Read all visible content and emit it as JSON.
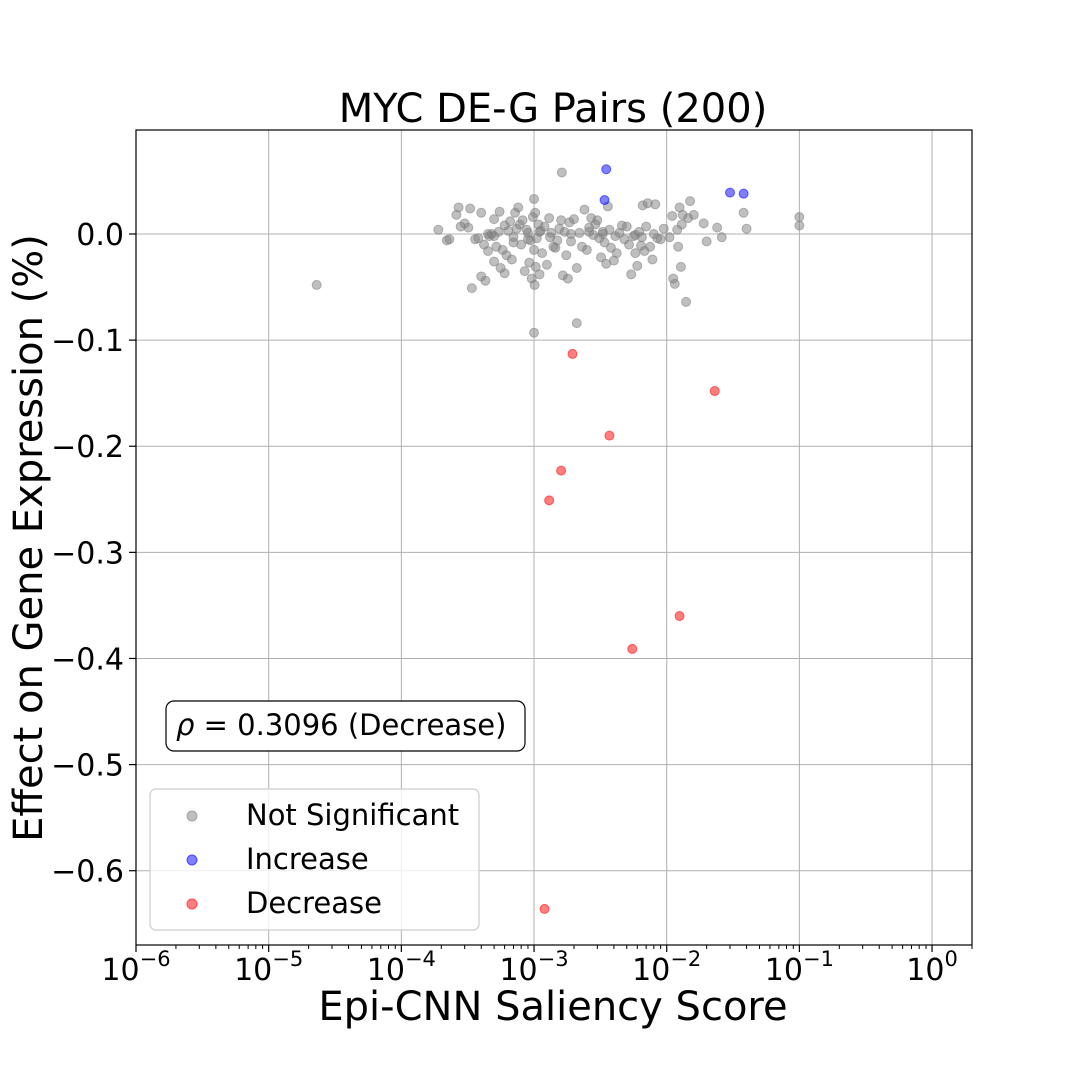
{
  "chart_data": {
    "type": "scatter",
    "title": "MYC DE-G Pairs (200)",
    "xlabel": "Epi-CNN Saliency Score",
    "ylabel": "Effect on Gene Expression (%)",
    "xscale": "log",
    "xlim": [
      1e-06,
      2
    ],
    "ylim": [
      -0.67,
      0.098
    ],
    "x_tick_values": [
      1e-06,
      1e-05,
      0.0001,
      0.001,
      0.01,
      0.1,
      1
    ],
    "x_tick_labels": [
      {
        "base": "10",
        "exp": "−6"
      },
      {
        "base": "10",
        "exp": "−5"
      },
      {
        "base": "10",
        "exp": "−4"
      },
      {
        "base": "10",
        "exp": "−3"
      },
      {
        "base": "10",
        "exp": "−2"
      },
      {
        "base": "10",
        "exp": "−1"
      },
      {
        "base": "10",
        "exp": "0"
      }
    ],
    "y_ticks": [
      {
        "value": 0.0,
        "label": "0.0"
      },
      {
        "value": -0.1,
        "label": "−0.1"
      },
      {
        "value": -0.2,
        "label": "−0.2"
      },
      {
        "value": -0.3,
        "label": "−0.3"
      },
      {
        "value": -0.4,
        "label": "−0.4"
      },
      {
        "value": -0.5,
        "label": "−0.5"
      },
      {
        "value": -0.6,
        "label": "−0.6"
      }
    ],
    "grid": true,
    "legend_position": "lower-left",
    "annotation": {
      "symbol": "ρ",
      "text": " = 0.3096 (Decrease)"
    },
    "series": [
      {
        "name": "Not Significant",
        "color": "#808080",
        "points": [
          [
            2.3e-05,
            -0.048
          ],
          [
            0.00019,
            0.004
          ],
          [
            0.00022,
            -0.006
          ],
          [
            0.00023,
            -0.005
          ],
          [
            0.00026,
            0.018
          ],
          [
            0.00027,
            0.025
          ],
          [
            0.00028,
            0.007
          ],
          [
            0.0003,
            0.01
          ],
          [
            0.00032,
            0.006
          ],
          [
            0.00033,
            0.024
          ],
          [
            0.00034,
            -0.051
          ],
          [
            0.00036,
            -0.005
          ],
          [
            0.00038,
            -0.004
          ],
          [
            0.0004,
            0.02
          ],
          [
            0.0004,
            -0.04
          ],
          [
            0.00042,
            -0.01
          ],
          [
            0.00043,
            -0.044
          ],
          [
            0.00045,
            -0.016
          ],
          [
            0.00046,
            -0.002
          ],
          [
            0.00048,
            0.0
          ],
          [
            0.0005,
            0.014
          ],
          [
            0.0005,
            -0.026
          ],
          [
            0.00052,
            -0.012
          ],
          [
            0.00054,
            0.002
          ],
          [
            0.00055,
            0.021
          ],
          [
            0.00056,
            -0.032
          ],
          [
            0.00058,
            -0.015
          ],
          [
            0.0006,
            -0.037
          ],
          [
            0.0006,
            0.008
          ],
          [
            0.00062,
            -0.02
          ],
          [
            0.00064,
            0.003
          ],
          [
            0.00066,
            0.012
          ],
          [
            0.00068,
            -0.024
          ],
          [
            0.0007,
            -0.008
          ],
          [
            0.00072,
            0.02
          ],
          [
            0.00074,
            0.005
          ],
          [
            0.00076,
            0.025
          ],
          [
            0.00078,
            0.009
          ],
          [
            0.0008,
            -0.01
          ],
          [
            0.00082,
            0.013
          ],
          [
            0.00085,
            -0.035
          ],
          [
            0.00088,
            0.004
          ],
          [
            0.0009,
            0.001
          ],
          [
            0.00092,
            -0.027
          ],
          [
            0.00094,
            -0.006
          ],
          [
            0.00096,
            -0.042
          ],
          [
            0.00098,
            0.016
          ],
          [
            0.001,
            -0.015
          ],
          [
            0.001,
            0.033
          ],
          [
            0.00101,
            -0.048
          ],
          [
            0.00102,
            0.02
          ],
          [
            0.00103,
            -0.031
          ],
          [
            0.00105,
            -0.004
          ],
          [
            0.00108,
            0.009
          ],
          [
            0.0011,
            -0.038
          ],
          [
            0.00112,
            0.003
          ],
          [
            0.00115,
            -0.018
          ],
          [
            0.0012,
            0.007
          ],
          [
            0.00125,
            -0.029
          ],
          [
            0.0013,
            0.015
          ],
          [
            0.00132,
            -0.003
          ],
          [
            0.00135,
            0.001
          ],
          [
            0.0014,
            -0.012
          ],
          [
            0.00145,
            -0.013
          ],
          [
            0.0015,
            -0.006
          ],
          [
            0.00155,
            0.005
          ],
          [
            0.0016,
            0.013
          ],
          [
            0.00165,
            -0.039
          ],
          [
            0.0017,
            0.002
          ],
          [
            0.00175,
            -0.02
          ],
          [
            0.0018,
            -0.042
          ],
          [
            0.00185,
            0.011
          ],
          [
            0.0019,
            -0.007
          ],
          [
            0.002,
            0.014
          ],
          [
            0.0021,
            -0.032
          ],
          [
            0.0022,
            0.001
          ],
          [
            0.0023,
            -0.012
          ],
          [
            0.0024,
            0.023
          ],
          [
            0.0025,
            -0.015
          ],
          [
            0.0026,
            0.006
          ],
          [
            0.0027,
            0.015
          ],
          [
            0.0028,
            -0.001
          ],
          [
            0.0029,
            0.009
          ],
          [
            0.003,
            0.013
          ],
          [
            0.0031,
            -0.004
          ],
          [
            0.0032,
            -0.022
          ],
          [
            0.0033,
            0.002
          ],
          [
            0.0034,
            -0.008
          ],
          [
            0.0035,
            -0.028
          ],
          [
            0.0036,
            0.026
          ],
          [
            0.0037,
            0.004
          ],
          [
            0.0038,
            -0.013
          ],
          [
            0.004,
            -0.025
          ],
          [
            0.0042,
            -0.018
          ],
          [
            0.0044,
            0.001
          ],
          [
            0.0046,
            0.008
          ],
          [
            0.0048,
            -0.005
          ],
          [
            0.005,
            0.007
          ],
          [
            0.0052,
            -0.01
          ],
          [
            0.0054,
            -0.038
          ],
          [
            0.0056,
            -0.002
          ],
          [
            0.0058,
            -0.018
          ],
          [
            0.006,
            -0.03
          ],
          [
            0.0062,
            0.002
          ],
          [
            0.0064,
            -0.011
          ],
          [
            0.0066,
            0.027
          ],
          [
            0.0068,
            -0.016
          ],
          [
            0.007,
            0.007
          ],
          [
            0.0072,
            0.029
          ],
          [
            0.0075,
            -0.012
          ],
          [
            0.0078,
            -0.024
          ],
          [
            0.008,
            0.0
          ],
          [
            0.0082,
            0.028
          ],
          [
            0.0085,
            -0.004
          ],
          [
            0.009,
            -0.005
          ],
          [
            0.0095,
            0.005
          ],
          [
            0.0105,
            -0.003
          ],
          [
            0.011,
            0.017
          ],
          [
            0.0112,
            -0.042
          ],
          [
            0.0115,
            -0.047
          ],
          [
            0.012,
            0.004
          ],
          [
            0.0122,
            -0.012
          ],
          [
            0.0125,
            0.025
          ],
          [
            0.0128,
            -0.031
          ],
          [
            0.013,
            0.009
          ],
          [
            0.0132,
            0.018
          ],
          [
            0.014,
            -0.064
          ],
          [
            0.0145,
            0.015
          ],
          [
            0.015,
            0.031
          ],
          [
            0.016,
            0.018
          ],
          [
            0.019,
            0.01
          ],
          [
            0.02,
            -0.007
          ],
          [
            0.024,
            0.006
          ],
          [
            0.026,
            -0.003
          ],
          [
            0.038,
            0.02
          ],
          [
            0.04,
            0.005
          ],
          [
            0.1,
            0.016
          ],
          [
            0.1,
            0.008
          ],
          [
            0.00162,
            0.058
          ],
          [
            0.0021,
            -0.084
          ],
          [
            0.001,
            -0.093
          ],
          [
            0.0007,
            -0.003
          ],
          [
            0.0005,
            -0.002
          ],
          [
            0.00045,
            0.0
          ],
          [
            0.0009,
            -0.005
          ],
          [
            0.0011,
            0.002
          ],
          [
            0.0019,
            0.0
          ],
          [
            0.0026,
            0.002
          ],
          [
            0.0033,
            0.0
          ],
          [
            0.0041,
            -0.002
          ],
          [
            0.0058,
            -0.001
          ],
          [
            0.0065,
            -0.003
          ]
        ]
      },
      {
        "name": "Increase",
        "color": "#0000ff",
        "points": [
          [
            0.0035,
            0.061
          ],
          [
            0.0034,
            0.032
          ],
          [
            0.03,
            0.039
          ],
          [
            0.038,
            0.038
          ]
        ]
      },
      {
        "name": "Decrease",
        "color": "#ff0000",
        "points": [
          [
            0.00195,
            -0.113
          ],
          [
            0.023,
            -0.148
          ],
          [
            0.0037,
            -0.19
          ],
          [
            0.0016,
            -0.223
          ],
          [
            0.0013,
            -0.251
          ],
          [
            0.0125,
            -0.36
          ],
          [
            0.0055,
            -0.391
          ],
          [
            0.0012,
            -0.636
          ]
        ]
      }
    ]
  }
}
